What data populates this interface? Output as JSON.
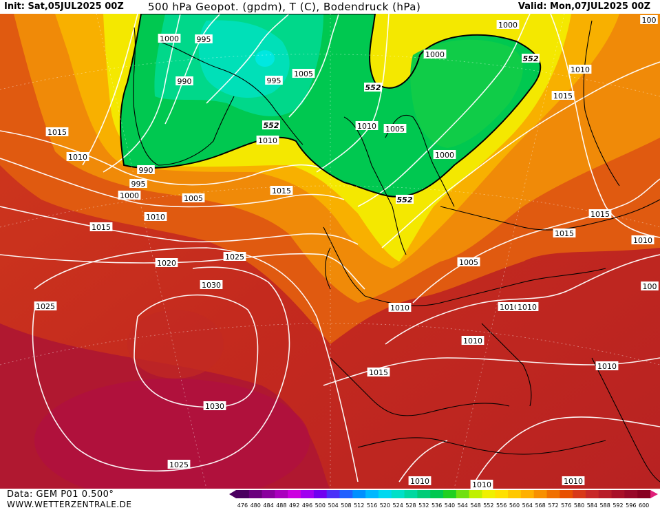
{
  "header": {
    "init": "Init: Sat,05JUL2025 00Z",
    "title": "500 hPa Geopot. (gpdm), T (C), Bodendruck (hPa)",
    "valid": "Valid: Mon,07JUL2025 00Z"
  },
  "footer": {
    "data_source": "Data: GEM P01 0.500°",
    "website": "WWW.WETTERZENTRALE.DE"
  },
  "legend": {
    "values": [
      "476",
      "480",
      "484",
      "488",
      "492",
      "496",
      "500",
      "504",
      "508",
      "512",
      "516",
      "520",
      "524",
      "528",
      "532",
      "536",
      "540",
      "544",
      "548",
      "552",
      "556",
      "560",
      "564",
      "568",
      "572",
      "576",
      "580",
      "584",
      "588",
      "592",
      "596",
      "600"
    ],
    "colors": [
      "#4b0060",
      "#6a007d",
      "#8a009e",
      "#aa00be",
      "#cc00e0",
      "#a000f0",
      "#7000f0",
      "#4a30f8",
      "#2060ff",
      "#0090ff",
      "#00b8ff",
      "#00d8f0",
      "#00e0c8",
      "#00d8a0",
      "#00cc78",
      "#00c850",
      "#20d020",
      "#70e010",
      "#c0f000",
      "#f0f000",
      "#ffe000",
      "#ffc800",
      "#ffb000",
      "#f89000",
      "#f07000",
      "#e85000",
      "#d83818",
      "#c82828",
      "#b81c28",
      "#a81028",
      "#980828",
      "#880020"
    ]
  },
  "isobar_labels": [
    {
      "text": "1000"
    },
    {
      "text": "995"
    },
    {
      "text": "990"
    },
    {
      "text": "990"
    },
    {
      "text": "995"
    },
    {
      "text": "1000"
    },
    {
      "text": "1005"
    },
    {
      "text": "1010"
    },
    {
      "text": "1015"
    },
    {
      "text": "1015"
    },
    {
      "text": "1010"
    },
    {
      "text": "1010"
    },
    {
      "text": "1005"
    },
    {
      "text": "995"
    },
    {
      "text": "1005"
    },
    {
      "text": "1010"
    },
    {
      "text": "1015"
    },
    {
      "text": "1000"
    },
    {
      "text": "1000"
    },
    {
      "text": "1010"
    },
    {
      "text": "1005"
    },
    {
      "text": "1000"
    },
    {
      "text": "1010"
    },
    {
      "text": "1015"
    },
    {
      "text": "1015"
    },
    {
      "text": "1015"
    },
    {
      "text": "1010"
    },
    {
      "text": "100"
    },
    {
      "text": "1020"
    },
    {
      "text": "1025"
    },
    {
      "text": "1030"
    },
    {
      "text": "1025"
    },
    {
      "text": "1005"
    },
    {
      "text": "1010"
    },
    {
      "text": "1010"
    },
    {
      "text": "1010"
    },
    {
      "text": "1010"
    },
    {
      "text": "1015"
    },
    {
      "text": "1010"
    },
    {
      "text": "1030"
    },
    {
      "text": "1025"
    },
    {
      "text": "1010"
    },
    {
      "text": "1010"
    },
    {
      "text": "1010"
    },
    {
      "text": "100"
    }
  ],
  "geopot_labels": [
    {
      "text": "552"
    },
    {
      "text": "552"
    },
    {
      "text": "552"
    },
    {
      "text": "552"
    }
  ]
}
